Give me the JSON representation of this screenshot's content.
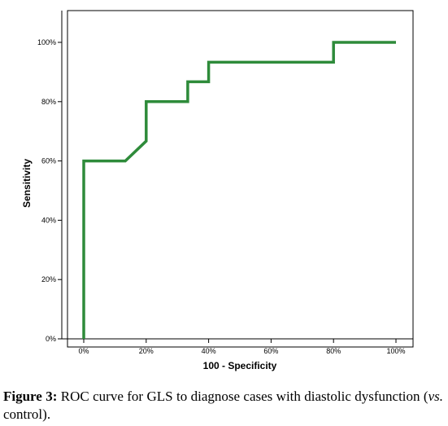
{
  "chart_data": {
    "type": "line",
    "title": "",
    "xlabel": "100 - Specificity",
    "ylabel": "Sensitivity",
    "xlim": [
      0,
      100
    ],
    "ylim": [
      0,
      100
    ],
    "xticks": [
      "0%",
      "20%",
      "40%",
      "60%",
      "80%",
      "100%"
    ],
    "yticks": [
      "0%",
      "20%",
      "40%",
      "60%",
      "80%",
      "100%"
    ],
    "grid": false,
    "line_color": "#2e8b3a",
    "series": [
      {
        "x": [
          0,
          0,
          13.3,
          20,
          20,
          33.3,
          33.3,
          40,
          40,
          80,
          80,
          100
        ],
        "y": [
          0,
          60,
          60,
          66.7,
          80,
          80,
          86.7,
          86.7,
          93.3,
          93.3,
          100,
          100
        ]
      }
    ]
  },
  "caption": {
    "label": "Figure 3:",
    "text_before": " ROC curve for GLS to diagnose cases with diastolic dysfunction (",
    "italic": "vs.",
    "text_after": " control)."
  }
}
